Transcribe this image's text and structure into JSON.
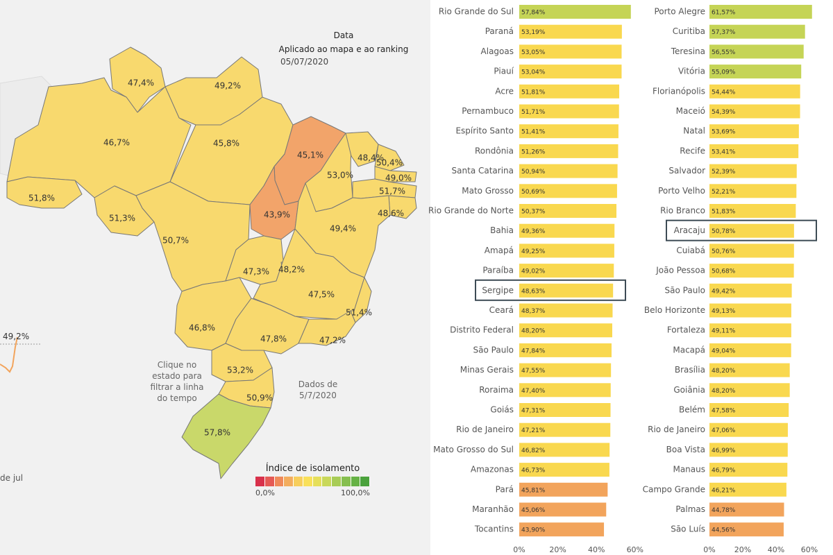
{
  "map": {
    "filter_label": "Data",
    "filter_sub": "Aplicado ao mapa e ao ranking",
    "date": "05/07/2020",
    "hint": "Clique no estado para filtrar a linha do tempo",
    "data_note": "Dados de 5/7/2020",
    "timeline_value": "49,2%",
    "timeline_xlabel": "de jul",
    "legend": {
      "title": "Índice de isolamento",
      "min_label": "0,0%",
      "max_label": "100,0%",
      "colors": [
        "#d8314b",
        "#e55a55",
        "#ef8a5a",
        "#f3ad5e",
        "#f7ce5c",
        "#f9e05a",
        "#e6df5a",
        "#c9d85a",
        "#a8cc56",
        "#86bf4f",
        "#66b245",
        "#4aa23c"
      ]
    },
    "colors": {
      "yellow": "#f8d96e",
      "orange": "#f2a46a",
      "green": "#c9d86a",
      "background": "#f1f1f1"
    },
    "states": [
      {
        "label": "47,4%",
        "tier": "yellow"
      },
      {
        "label": "49,2%",
        "tier": "yellow"
      },
      {
        "label": "46,7%",
        "tier": "yellow"
      },
      {
        "label": "45,8%",
        "tier": "yellow"
      },
      {
        "label": "45,1%",
        "tier": "orange"
      },
      {
        "label": "53,0%",
        "tier": "yellow"
      },
      {
        "label": "48,4%",
        "tier": "yellow"
      },
      {
        "label": "50,4%",
        "tier": "yellow"
      },
      {
        "label": "49,0%",
        "tier": "yellow"
      },
      {
        "label": "51,7%",
        "tier": "yellow"
      },
      {
        "label": "48,6%",
        "tier": "yellow"
      },
      {
        "label": "51,8%",
        "tier": "yellow"
      },
      {
        "label": "51,3%",
        "tier": "yellow"
      },
      {
        "label": "50,7%",
        "tier": "yellow"
      },
      {
        "label": "43,9%",
        "tier": "orange"
      },
      {
        "label": "49,4%",
        "tier": "yellow"
      },
      {
        "label": "47,3%",
        "tier": "yellow"
      },
      {
        "label": "48,2%",
        "tier": "yellow"
      },
      {
        "label": "47,5%",
        "tier": "yellow"
      },
      {
        "label": "51,4%",
        "tier": "yellow"
      },
      {
        "label": "46,8%",
        "tier": "yellow"
      },
      {
        "label": "47,8%",
        "tier": "yellow"
      },
      {
        "label": "47,2%",
        "tier": "yellow"
      },
      {
        "label": "53,2%",
        "tier": "yellow"
      },
      {
        "label": "50,9%",
        "tier": "yellow"
      },
      {
        "label": "57,8%",
        "tier": "green"
      }
    ]
  },
  "chart_data": [
    {
      "type": "bar",
      "orientation": "horizontal",
      "categories": [
        "Rio Grande do Sul",
        "Paraná",
        "Alagoas",
        "Piauí",
        "Acre",
        "Pernambuco",
        "Espírito Santo",
        "Rondônia",
        "Santa Catarina",
        "Mato Grosso",
        "Rio Grande do Norte",
        "Bahia",
        "Amapá",
        "Paraíba",
        "Sergipe",
        "Ceará",
        "Distrito Federal",
        "São Paulo",
        "Minas Gerais",
        "Roraima",
        "Goiás",
        "Rio de Janeiro",
        "Mato Grosso do Sul",
        "Amazonas",
        "Pará",
        "Maranhão",
        "Tocantins"
      ],
      "values": [
        57.84,
        53.19,
        53.05,
        53.04,
        51.81,
        51.71,
        51.41,
        51.26,
        50.94,
        50.69,
        50.37,
        49.36,
        49.25,
        49.02,
        48.63,
        48.37,
        48.2,
        47.84,
        47.55,
        47.4,
        47.31,
        47.21,
        46.82,
        46.73,
        45.81,
        45.06,
        43.9
      ],
      "value_labels": [
        "57,84%",
        "53,19%",
        "53,05%",
        "53,04%",
        "51,81%",
        "51,71%",
        "51,41%",
        "51,26%",
        "50,94%",
        "50,69%",
        "50,37%",
        "49,36%",
        "49,25%",
        "49,02%",
        "48,63%",
        "48,37%",
        "48,20%",
        "47,84%",
        "47,55%",
        "47,40%",
        "47,31%",
        "47,21%",
        "46,82%",
        "46,73%",
        "45,81%",
        "45,06%",
        "43,90%"
      ],
      "xlim": [
        0,
        60
      ],
      "ticks": [
        "0%",
        "20%",
        "40%",
        "60%"
      ],
      "highlighted": "Sergipe",
      "grid": false,
      "colors": {
        "green": "#c5d456",
        "yellow": "#f9d84f",
        "orange": "#f2a45c"
      }
    },
    {
      "type": "bar",
      "orientation": "horizontal",
      "categories": [
        "Porto Alegre",
        "Curitiba",
        "Teresina",
        "Vitória",
        "Florianópolis",
        "Maceió",
        "Natal",
        "Recife",
        "Salvador",
        "Porto Velho",
        "Rio Branco",
        "Aracaju",
        "Cuiabá",
        "João Pessoa",
        "São Paulo",
        "Belo Horizonte",
        "Fortaleza",
        "Macapá",
        "Brasília",
        "Goiânia",
        "Belém",
        "Rio de Janeiro",
        "Boa Vista",
        "Manaus",
        "Campo Grande",
        "Palmas",
        "São Luís"
      ],
      "values": [
        61.57,
        57.37,
        56.55,
        55.09,
        54.44,
        54.39,
        53.69,
        53.41,
        52.39,
        52.21,
        51.83,
        50.78,
        50.76,
        50.68,
        49.42,
        49.13,
        49.11,
        49.04,
        48.2,
        48.2,
        47.58,
        47.06,
        46.99,
        46.79,
        46.21,
        44.78,
        44.56
      ],
      "value_labels": [
        "61,57%",
        "57,37%",
        "56,55%",
        "55,09%",
        "54,44%",
        "54,39%",
        "53,69%",
        "53,41%",
        "52,39%",
        "52,21%",
        "51,83%",
        "50,78%",
        "50,76%",
        "50,68%",
        "49,42%",
        "49,13%",
        "49,11%",
        "49,04%",
        "48,20%",
        "48,20%",
        "47,58%",
        "47,06%",
        "46,99%",
        "46,79%",
        "46,21%",
        "44,78%",
        "44,56%"
      ],
      "xlim": [
        0,
        60
      ],
      "ticks": [
        "0%",
        "20%",
        "40%",
        "60%"
      ],
      "highlighted": "Aracaju",
      "grid": false,
      "colors": {
        "green": "#c5d456",
        "yellow": "#f9d84f",
        "orange": "#f2a45c"
      }
    }
  ]
}
